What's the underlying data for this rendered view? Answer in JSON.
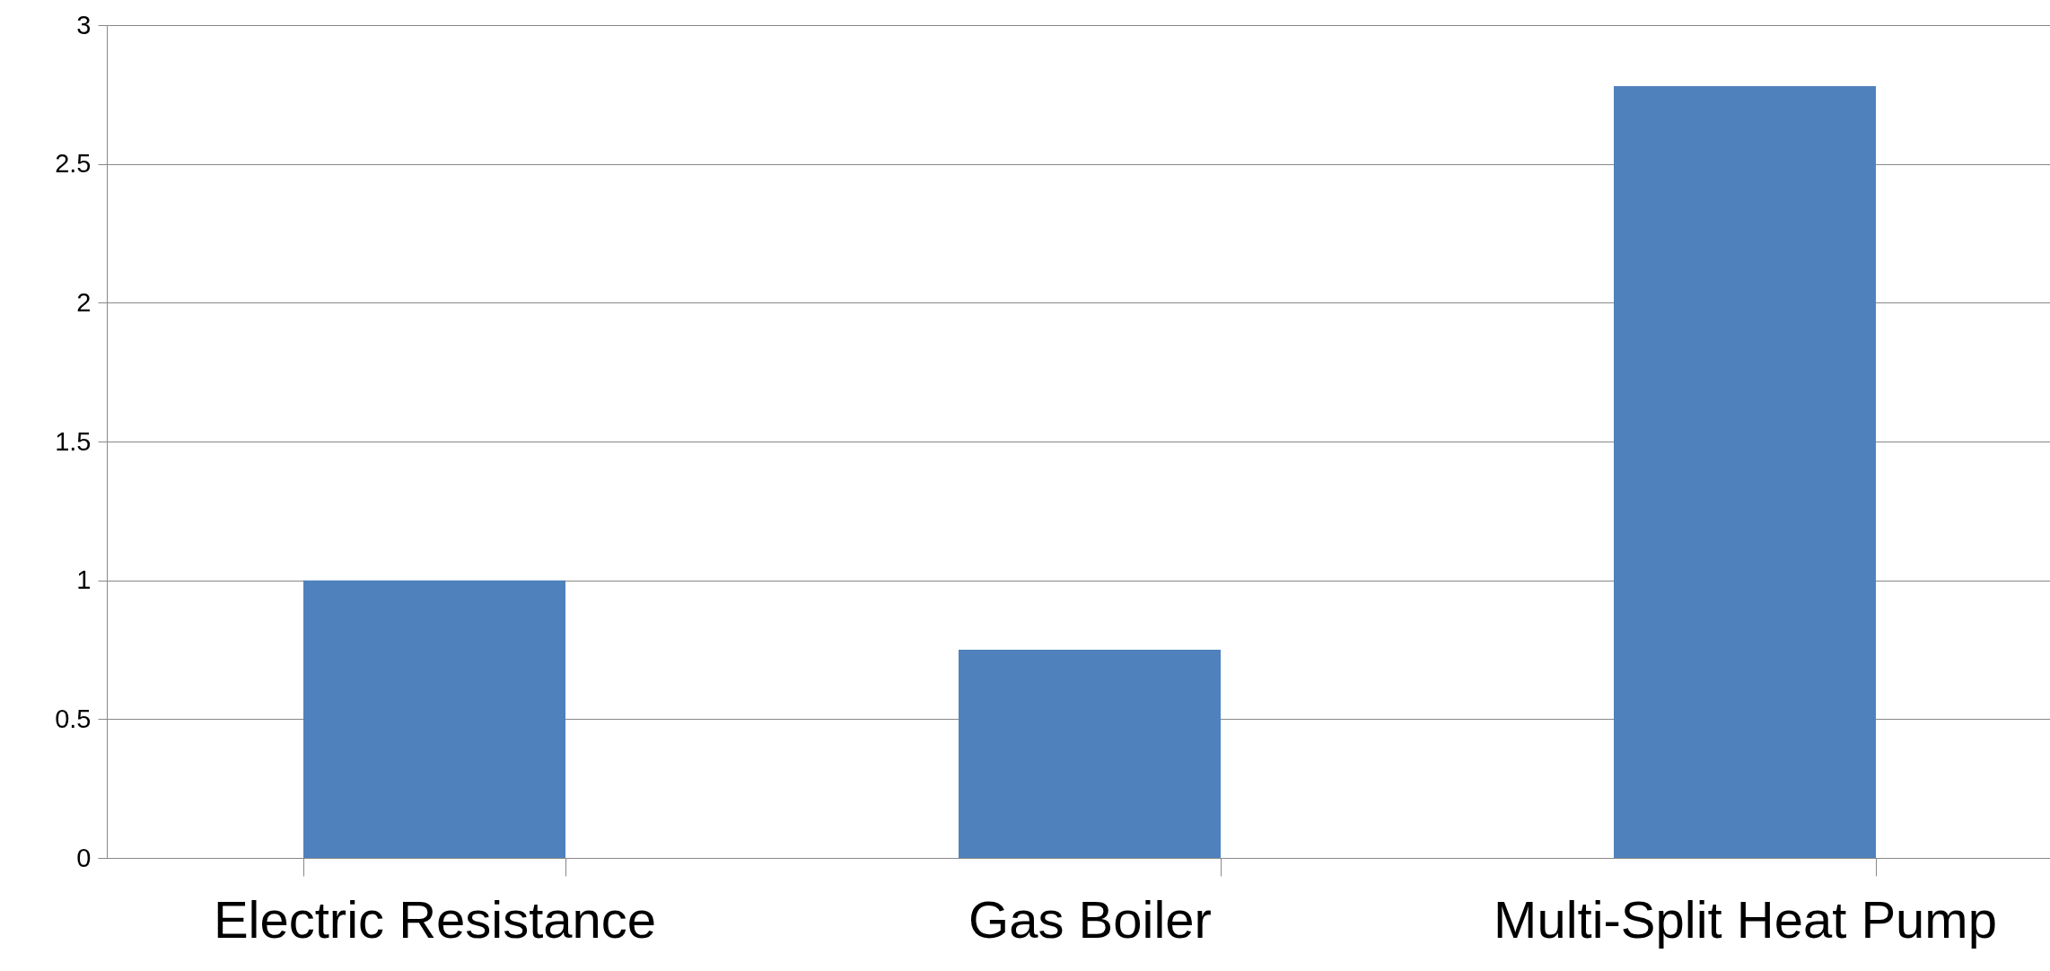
{
  "chart_data": {
    "type": "bar",
    "categories": [
      "Electric Resistance",
      "Gas Boiler",
      "Multi-Split Heat Pump"
    ],
    "values": [
      1,
      0.75,
      2.78
    ],
    "color": "#4f81bd",
    "ylim": [
      0,
      3
    ],
    "yticks": [
      0,
      0.5,
      1,
      1.5,
      2,
      2.5,
      3
    ],
    "grid": "y"
  }
}
